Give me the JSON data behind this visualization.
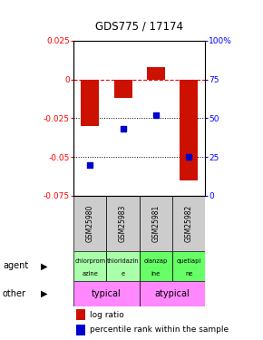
{
  "title": "GDS775 / 17174",
  "samples": [
    "GSM25980",
    "GSM25983",
    "GSM25981",
    "GSM25982"
  ],
  "log_ratios": [
    -0.03,
    -0.012,
    0.008,
    -0.065
  ],
  "percentile_ranks": [
    20,
    43,
    52,
    25
  ],
  "ylim_left": [
    -0.075,
    0.025
  ],
  "yticks_left": [
    0.025,
    0.0,
    -0.025,
    -0.05,
    -0.075
  ],
  "ytick_labels_left": [
    "0.025",
    "0",
    "-0.025",
    "-0.05",
    "-0.075"
  ],
  "yticks_right_pct": [
    100,
    75,
    50,
    25,
    0
  ],
  "bar_color": "#cc1100",
  "dot_color": "#0000cc",
  "agent_labels_line1": [
    "chlorprom",
    "thioridazin",
    "olanzap",
    "quetiapi"
  ],
  "agent_labels_line2": [
    "azine",
    "e",
    "ine",
    "ne"
  ],
  "agent_colors": [
    "#aaffaa",
    "#aaffaa",
    "#66ff66",
    "#66ff66"
  ],
  "other_color": "#ff88ff",
  "sample_bg_color": "#cccccc",
  "legend_bar_label": "log ratio",
  "legend_dot_label": "percentile rank within the sample"
}
